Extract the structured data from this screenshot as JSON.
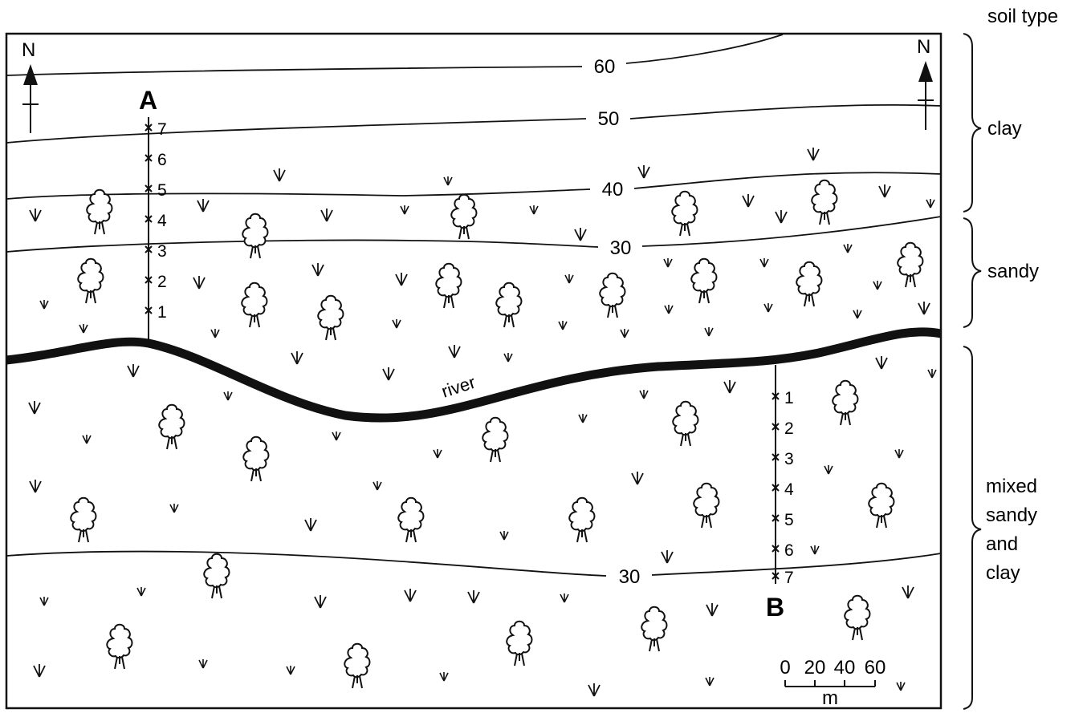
{
  "header": {
    "soil_type_title": "soil type"
  },
  "compass": {
    "north_label": "N"
  },
  "contours": [
    {
      "value": "60"
    },
    {
      "value": "50"
    },
    {
      "value": "40"
    },
    {
      "value": "30"
    },
    {
      "value": "30"
    }
  ],
  "river": {
    "label": "river"
  },
  "transects": [
    {
      "label": "A",
      "points": [
        "7",
        "6",
        "5",
        "4",
        "3",
        "2",
        "1"
      ]
    },
    {
      "label": "B",
      "points": [
        "1",
        "2",
        "3",
        "4",
        "5",
        "6",
        "7"
      ]
    }
  ],
  "soil_zones": [
    {
      "label": "clay"
    },
    {
      "label": "sandy"
    },
    {
      "label": "mixed sandy and clay",
      "lines": [
        "mixed",
        "sandy",
        "and",
        "clay"
      ]
    }
  ],
  "scale_bar": {
    "ticks": [
      "0",
      "20",
      "40",
      "60"
    ],
    "unit": "m"
  },
  "vegetation": {
    "tree_icon": "tree-icon",
    "grass_icon": "grass-tuft-icon"
  }
}
